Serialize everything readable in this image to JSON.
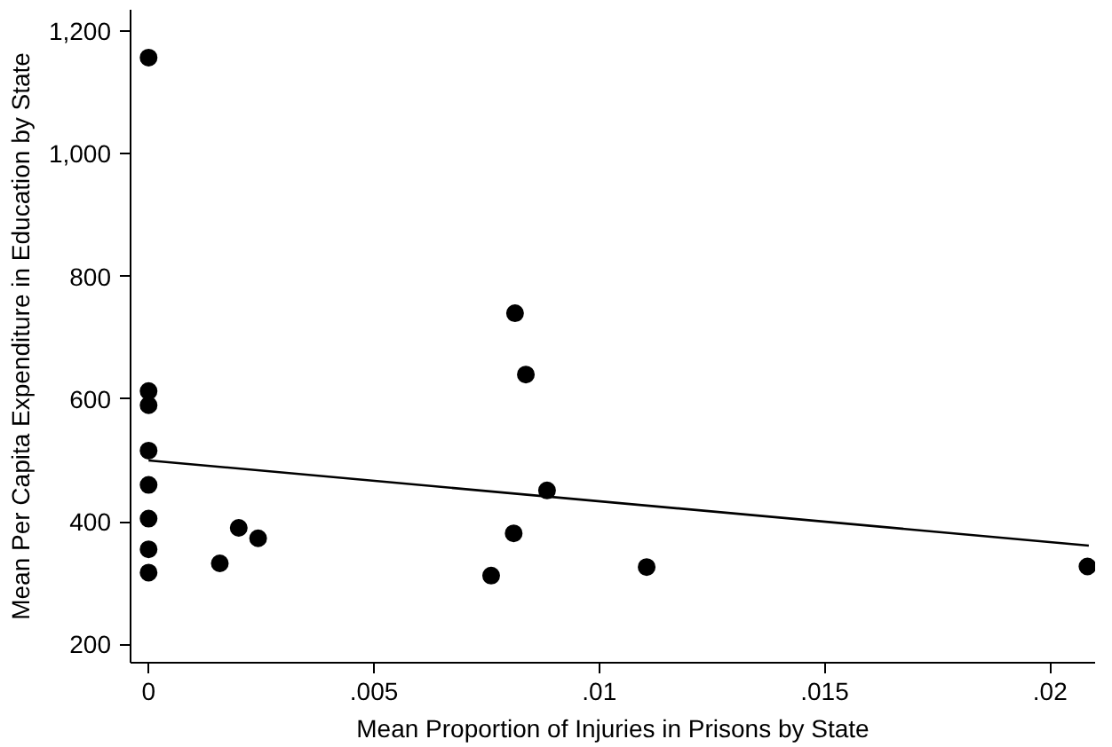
{
  "chart_data": {
    "type": "scatter",
    "xlabel": "Mean Proportion of Injuries in Prisons by State",
    "ylabel": "Mean Per Capita Expenditure in Education by State",
    "xlim": [
      -0.0004,
      0.021
    ],
    "ylim": [
      170,
      1235
    ],
    "xticks": [
      {
        "value": 0,
        "label": "0"
      },
      {
        "value": 0.005,
        "label": ".005"
      },
      {
        "value": 0.01,
        "label": ".01"
      },
      {
        "value": 0.015,
        "label": ".015"
      },
      {
        "value": 0.02,
        "label": ".02"
      }
    ],
    "yticks": [
      {
        "value": 200,
        "label": "200"
      },
      {
        "value": 400,
        "label": "400"
      },
      {
        "value": 600,
        "label": "600"
      },
      {
        "value": 800,
        "label": "800"
      },
      {
        "value": 1000,
        "label": "1,000"
      },
      {
        "value": 1200,
        "label": "1,200"
      }
    ],
    "grid": false,
    "series": [
      {
        "color": "#000000",
        "marker": "circle",
        "x": [
          0,
          0,
          0,
          0,
          0,
          0,
          0,
          0,
          0.00158,
          0.002,
          0.00243,
          0.0076,
          0.00813,
          0.00837,
          0.0081,
          0.00884,
          0.01105,
          0.02083
        ],
        "values": [
          1157,
          613,
          590,
          516,
          460,
          405,
          355,
          317,
          332,
          390,
          373,
          312,
          740,
          640,
          381,
          451,
          326,
          327
        ]
      },
      {
        "type": "line",
        "color": "#000000",
        "x": [
          0,
          0.02086
        ],
        "values": [
          500,
          361
        ]
      }
    ]
  }
}
